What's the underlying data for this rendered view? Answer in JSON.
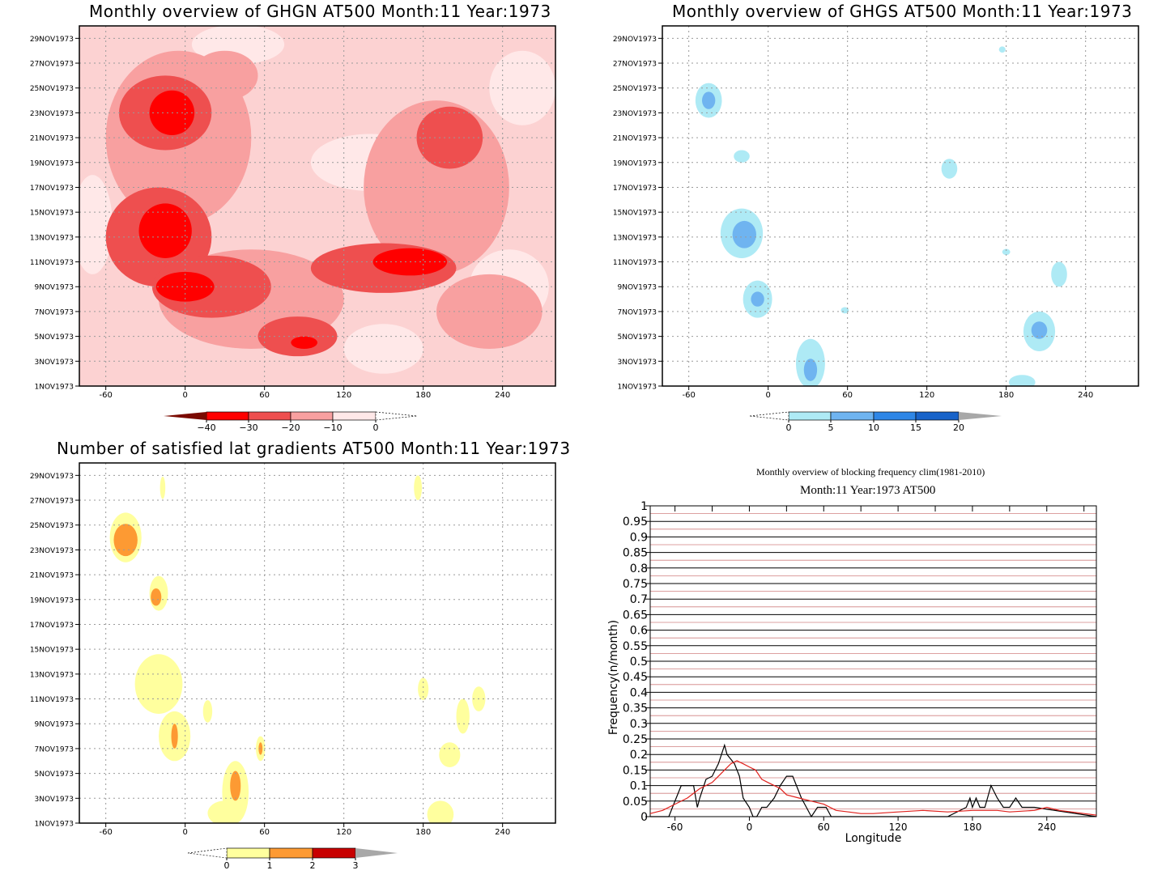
{
  "colors": {
    "ghgn": [
      "#7a0a00",
      "#ff0000",
      "#ee4f4f",
      "#f8a0a0",
      "#ffe8e8",
      "#ffffff"
    ],
    "ghgs": [
      "#ffffff",
      "#aeeaf5",
      "#6fb4f0",
      "#2e86e6",
      "#1863c9",
      "#a8a8a8"
    ],
    "lat": [
      "#ffffff",
      "#ffff9e",
      "#fd9a33",
      "#c80000",
      "#a8a8a8"
    ],
    "line_black": "#000000",
    "line_red": "#e0201c",
    "grid_red": "#d08080"
  },
  "panels": {
    "ghgn": {
      "title": "Monthly overview of GHGN AT500 Month:11 Year:1973",
      "colorbar_labels": [
        "−40",
        "−30",
        "−20",
        "−10",
        "0"
      ]
    },
    "ghgs": {
      "title": "Monthly overview of GHGS AT500 Month:11 Year:1973",
      "colorbar_labels": [
        "0",
        "5",
        "10",
        "15",
        "20"
      ]
    },
    "lat": {
      "title": "Number of satisfied lat gradients AT500 Month:11 Year:1973",
      "colorbar_labels": [
        "0",
        "1",
        "2",
        "3"
      ]
    },
    "freq": {
      "title_line1": "Monthly overview of blocking frequency clim(1981-2010)",
      "title_line2": "Month:11 Year:1973  AT500"
    }
  },
  "chart_data": [
    {
      "type": "heatmap",
      "title": "Monthly overview of GHGN AT500 Month:11 Year:1973",
      "x_ticks": [
        "-60",
        "0",
        "60",
        "120",
        "180",
        "240"
      ],
      "y_ticks": [
        "1NOV1973",
        "3NOV1973",
        "5NOV1973",
        "7NOV1973",
        "9NOV1973",
        "11NOV1973",
        "13NOV1973",
        "15NOV1973",
        "17NOV1973",
        "19NOV1973",
        "21NOV1973",
        "23NOV1973",
        "25NOV1973",
        "27NOV1973",
        "29NOV1973"
      ],
      "xlim": [
        -80,
        280
      ],
      "ylim": [
        1,
        30
      ],
      "levels": [
        -40,
        -30,
        -20,
        -10,
        0
      ],
      "regions": [
        {
          "level": 0,
          "x": 40,
          "y": 28.5,
          "rx": 35,
          "ry": 1.6
        },
        {
          "level": 0,
          "x": 140,
          "y": 19,
          "rx": 45,
          "ry": 2.3
        },
        {
          "level": 0,
          "x": 255,
          "y": 25,
          "rx": 25,
          "ry": 3
        },
        {
          "level": 0,
          "x": -70,
          "y": 14,
          "rx": 15,
          "ry": 4
        },
        {
          "level": 0,
          "x": 245,
          "y": 9,
          "rx": 30,
          "ry": 3
        },
        {
          "level": 0,
          "x": 150,
          "y": 4,
          "rx": 30,
          "ry": 2
        },
        {
          "level": -10,
          "x": -5,
          "y": 21,
          "rx": 55,
          "ry": 7
        },
        {
          "level": -10,
          "x": 50,
          "y": 8,
          "rx": 70,
          "ry": 4
        },
        {
          "level": -10,
          "x": 190,
          "y": 17,
          "rx": 55,
          "ry": 7
        },
        {
          "level": -10,
          "x": 230,
          "y": 7,
          "rx": 40,
          "ry": 3
        },
        {
          "level": -10,
          "x": 30,
          "y": 26,
          "rx": 25,
          "ry": 2
        },
        {
          "level": -20,
          "x": -20,
          "y": 13,
          "rx": 40,
          "ry": 4
        },
        {
          "level": -20,
          "x": -15,
          "y": 23,
          "rx": 35,
          "ry": 3
        },
        {
          "level": -20,
          "x": 20,
          "y": 9,
          "rx": 45,
          "ry": 2.5
        },
        {
          "level": -20,
          "x": 150,
          "y": 10.5,
          "rx": 55,
          "ry": 2
        },
        {
          "level": -20,
          "x": 200,
          "y": 21,
          "rx": 25,
          "ry": 2.5
        },
        {
          "level": -20,
          "x": 85,
          "y": 5,
          "rx": 30,
          "ry": 1.6
        },
        {
          "level": -30,
          "x": -15,
          "y": 13.5,
          "rx": 20,
          "ry": 2.2
        },
        {
          "level": -30,
          "x": -10,
          "y": 23,
          "rx": 17,
          "ry": 1.8
        },
        {
          "level": -30,
          "x": 0,
          "y": 9,
          "rx": 22,
          "ry": 1.2
        },
        {
          "level": -30,
          "x": 170,
          "y": 11,
          "rx": 28,
          "ry": 1.1
        },
        {
          "level": -30,
          "x": 90,
          "y": 4.5,
          "rx": 10,
          "ry": 0.5
        }
      ]
    },
    {
      "type": "heatmap",
      "title": "Monthly overview of GHGS AT500 Month:11 Year:1973",
      "x_ticks": [
        "-60",
        "0",
        "60",
        "120",
        "180",
        "240"
      ],
      "y_ticks": [
        "1NOV1973",
        "3NOV1973",
        "5NOV1973",
        "7NOV1973",
        "9NOV1973",
        "11NOV1973",
        "13NOV1973",
        "15NOV1973",
        "17NOV1973",
        "19NOV1973",
        "21NOV1973",
        "23NOV1973",
        "25NOV1973",
        "27NOV1973",
        "29NOV1973"
      ],
      "xlim": [
        -80,
        280
      ],
      "ylim": [
        1,
        30
      ],
      "levels": [
        0,
        5,
        10,
        15,
        20
      ],
      "regions": [
        {
          "level": 5,
          "x": -45,
          "y": 24,
          "rx": 10,
          "ry": 1.4
        },
        {
          "level": 10,
          "x": -45,
          "y": 24,
          "rx": 5,
          "ry": 0.7
        },
        {
          "level": 5,
          "x": -20,
          "y": 13.3,
          "rx": 16,
          "ry": 2
        },
        {
          "level": 10,
          "x": -18,
          "y": 13.2,
          "rx": 9,
          "ry": 1.1
        },
        {
          "level": 5,
          "x": -8,
          "y": 8,
          "rx": 11,
          "ry": 1.5
        },
        {
          "level": 10,
          "x": -8,
          "y": 8,
          "rx": 5,
          "ry": 0.6
        },
        {
          "level": 5,
          "x": 32,
          "y": 2.8,
          "rx": 11,
          "ry": 2
        },
        {
          "level": 10,
          "x": 32,
          "y": 2.3,
          "rx": 5,
          "ry": 0.9
        },
        {
          "level": 5,
          "x": 205,
          "y": 5.4,
          "rx": 12,
          "ry": 1.6
        },
        {
          "level": 10,
          "x": 205,
          "y": 5.5,
          "rx": 6,
          "ry": 0.7
        },
        {
          "level": 5,
          "x": 137,
          "y": 18.5,
          "rx": 6,
          "ry": 0.8
        },
        {
          "level": 5,
          "x": -20,
          "y": 19.5,
          "rx": 6,
          "ry": 0.5
        },
        {
          "level": 5,
          "x": 220,
          "y": 10,
          "rx": 6,
          "ry": 1
        },
        {
          "level": 5,
          "x": 192,
          "y": 1.3,
          "rx": 10,
          "ry": 0.6
        },
        {
          "level": 5,
          "x": 58,
          "y": 7.1,
          "rx": 3,
          "ry": 0.25
        },
        {
          "level": 5,
          "x": 180,
          "y": 11.8,
          "rx": 3,
          "ry": 0.25
        },
        {
          "level": 5,
          "x": 177,
          "y": 28.1,
          "rx": 2.5,
          "ry": 0.25
        }
      ]
    },
    {
      "type": "heatmap",
      "title": "Number of satisfied lat gradients AT500 Month:11 Year:1973",
      "x_ticks": [
        "-60",
        "0",
        "60",
        "120",
        "180",
        "240"
      ],
      "y_ticks": [
        "1NOV1973",
        "3NOV1973",
        "5NOV1973",
        "7NOV1973",
        "9NOV1973",
        "11NOV1973",
        "13NOV1973",
        "15NOV1973",
        "17NOV1973",
        "19NOV1973",
        "21NOV1973",
        "23NOV1973",
        "25NOV1973",
        "27NOV1973",
        "29NOV1973"
      ],
      "xlim": [
        -80,
        280
      ],
      "ylim": [
        1,
        30
      ],
      "levels": [
        0,
        1,
        2,
        3
      ],
      "regions": [
        {
          "level": 1,
          "x": -45,
          "y": 24,
          "rx": 12,
          "ry": 2
        },
        {
          "level": 2,
          "x": -45,
          "y": 23.8,
          "rx": 9,
          "ry": 1.3
        },
        {
          "level": 1,
          "x": -20,
          "y": 19.5,
          "rx": 7,
          "ry": 1.4
        },
        {
          "level": 2,
          "x": -22,
          "y": 19.2,
          "rx": 4,
          "ry": 0.7
        },
        {
          "level": 1,
          "x": -20,
          "y": 12.2,
          "rx": 18,
          "ry": 2.4
        },
        {
          "level": 1,
          "x": -8,
          "y": 8,
          "rx": 12,
          "ry": 2
        },
        {
          "level": 2,
          "x": -8,
          "y": 8,
          "rx": 2.5,
          "ry": 1
        },
        {
          "level": 1,
          "x": 17,
          "y": 10,
          "rx": 3.5,
          "ry": 0.9
        },
        {
          "level": 1,
          "x": 38,
          "y": 3.5,
          "rx": 10,
          "ry": 2.5
        },
        {
          "level": 2,
          "x": 38,
          "y": 4,
          "rx": 4,
          "ry": 1.2
        },
        {
          "level": 1,
          "x": 30,
          "y": 1.8,
          "rx": 13,
          "ry": 1
        },
        {
          "level": 1,
          "x": 57,
          "y": 7,
          "rx": 3.5,
          "ry": 1
        },
        {
          "level": 2,
          "x": 57,
          "y": 7,
          "rx": 1.5,
          "ry": 0.5
        },
        {
          "level": 1,
          "x": -17,
          "y": 28,
          "rx": 2,
          "ry": 0.9
        },
        {
          "level": 1,
          "x": 176,
          "y": 28,
          "rx": 3,
          "ry": 1
        },
        {
          "level": 1,
          "x": 180,
          "y": 11.8,
          "rx": 4,
          "ry": 0.9
        },
        {
          "level": 1,
          "x": 200,
          "y": 6.5,
          "rx": 8,
          "ry": 1
        },
        {
          "level": 1,
          "x": 210,
          "y": 9.6,
          "rx": 5,
          "ry": 1.4
        },
        {
          "level": 1,
          "x": 222,
          "y": 11,
          "rx": 5,
          "ry": 1
        },
        {
          "level": 1,
          "x": 193,
          "y": 1.7,
          "rx": 10,
          "ry": 1.1
        }
      ]
    },
    {
      "type": "line",
      "title": "Monthly overview of blocking frequency clim(1981-2010)",
      "subtitle": "Month:11 Year:1973  AT500",
      "xlabel": "Longitude",
      "ylabel": "Frequency(n/month)",
      "xlim": [
        -80,
        280
      ],
      "ylim": [
        0,
        1
      ],
      "x_ticks": [
        "-60",
        "0",
        "60",
        "120",
        "180",
        "240"
      ],
      "y_ticks": [
        "0",
        "0.05",
        "0.1",
        "0.15",
        "0.2",
        "0.25",
        "0.3",
        "0.35",
        "0.4",
        "0.45",
        "0.5",
        "0.55",
        "0.6",
        "0.65",
        "0.7",
        "0.75",
        "0.8",
        "0.85",
        "0.9",
        "0.95",
        "1"
      ],
      "series": [
        {
          "color": "#000000",
          "x": [
            -80,
            -65,
            -62,
            -55,
            -50,
            -45,
            -42,
            -40,
            -35,
            -30,
            -25,
            -20,
            -18,
            -12,
            -8,
            -5,
            0,
            3,
            6,
            10,
            14,
            20,
            25,
            30,
            35,
            38,
            42,
            46,
            50,
            55,
            58,
            62,
            66,
            80,
            160,
            175,
            178,
            180,
            183,
            186,
            190,
            195,
            200,
            205,
            210,
            215,
            220,
            225,
            230,
            280
          ],
          "y": [
            0,
            0,
            0.03,
            0.1,
            0.1,
            0.1,
            0.03,
            0.06,
            0.12,
            0.13,
            0.17,
            0.23,
            0.2,
            0.17,
            0.13,
            0.06,
            0.03,
            0,
            0,
            0.03,
            0.03,
            0.06,
            0.1,
            0.13,
            0.13,
            0.1,
            0.06,
            0.03,
            0,
            0.03,
            0.03,
            0.03,
            0,
            0,
            0,
            0.03,
            0.06,
            0.03,
            0.06,
            0.03,
            0.03,
            0.1,
            0.06,
            0.03,
            0.03,
            0.06,
            0.03,
            0.03,
            0.03,
            0
          ]
        },
        {
          "color": "#e0201c",
          "x": [
            -80,
            -70,
            -60,
            -50,
            -40,
            -30,
            -20,
            -15,
            -10,
            -5,
            0,
            5,
            10,
            15,
            20,
            25,
            30,
            40,
            50,
            60,
            70,
            80,
            90,
            100,
            120,
            140,
            160,
            180,
            200,
            210,
            230,
            240,
            250,
            260,
            270,
            280
          ],
          "y": [
            0.01,
            0.02,
            0.04,
            0.06,
            0.09,
            0.11,
            0.15,
            0.17,
            0.18,
            0.17,
            0.16,
            0.15,
            0.12,
            0.11,
            0.1,
            0.09,
            0.07,
            0.06,
            0.05,
            0.04,
            0.02,
            0.015,
            0.01,
            0.01,
            0.015,
            0.02,
            0.015,
            0.02,
            0.02,
            0.015,
            0.02,
            0.03,
            0.02,
            0.015,
            0.01,
            0.005
          ]
        }
      ]
    }
  ]
}
